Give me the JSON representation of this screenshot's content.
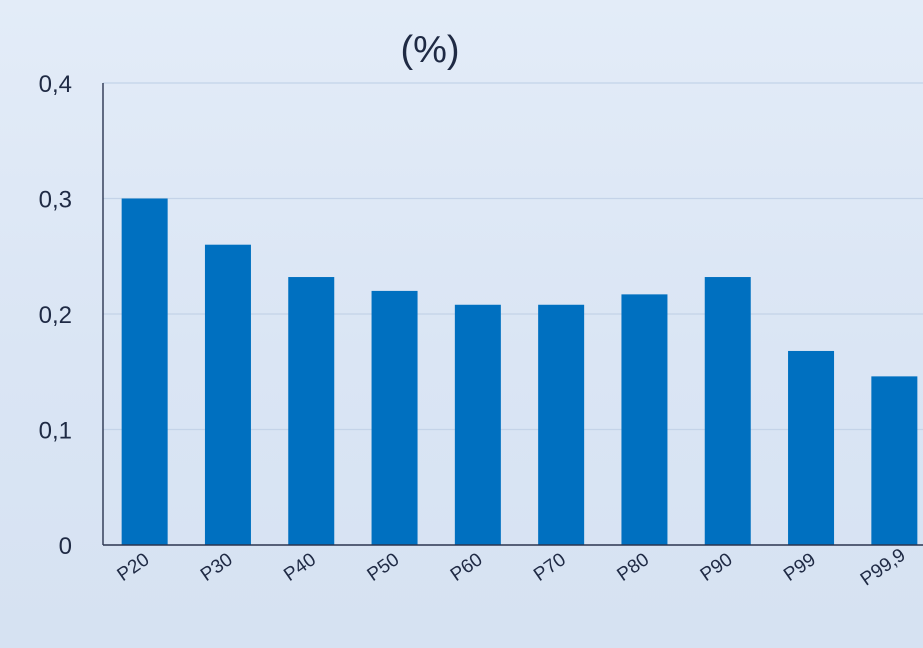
{
  "chart_data": {
    "type": "bar",
    "title": "(%)",
    "xlabel": "",
    "ylabel": "",
    "categories": [
      "P20",
      "P30",
      "P40",
      "P50",
      "P60",
      "P70",
      "P80",
      "P90",
      "P99",
      "P99,9"
    ],
    "values": [
      0.3,
      0.26,
      0.232,
      0.22,
      0.208,
      0.208,
      0.217,
      0.232,
      0.168,
      0.146
    ],
    "ylim": [
      0,
      0.4
    ],
    "yticks": [
      0,
      0.1,
      0.2,
      0.3,
      0.4
    ],
    "ytick_labels": [
      "0",
      "0,1",
      "0,2",
      "0,3",
      "0,4"
    ],
    "grid": true,
    "legend": "none",
    "bar_color": "#0070c0",
    "grid_color": "#c4d3e8"
  }
}
